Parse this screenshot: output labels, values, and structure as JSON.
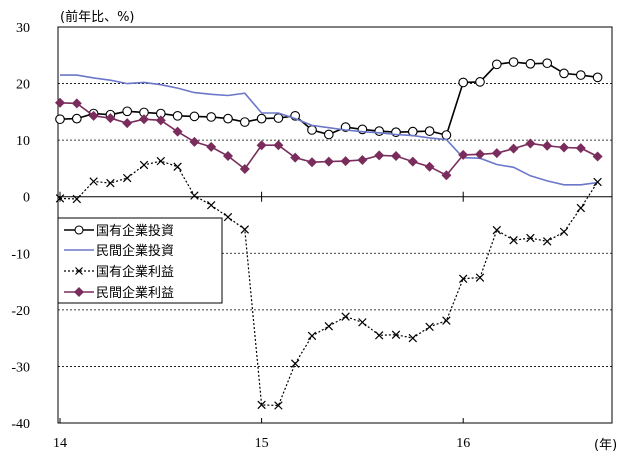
{
  "chart_data": {
    "type": "line",
    "ylabel": "(前年比、%)",
    "xunit": "(年)",
    "ylim": [
      -40,
      30
    ],
    "yticks": [
      30,
      20,
      10,
      0,
      -10,
      -20,
      -30,
      -40
    ],
    "xticks": [
      "14",
      "15",
      "16"
    ],
    "grid": "horizontal dashed",
    "legend_position": "left-middle",
    "series": [
      {
        "name": "国有企業投資",
        "color": "#000000",
        "marker": "circle",
        "values": [
          13.7,
          13.8,
          14.7,
          14.5,
          15.1,
          14.9,
          14.7,
          14.3,
          14.2,
          14.1,
          13.8,
          13.2,
          13.8,
          13.9,
          14.3,
          11.8,
          11.0,
          12.3,
          11.9,
          11.6,
          11.4,
          11.5,
          11.6,
          10.9,
          20.2,
          20.3,
          23.4,
          23.8,
          23.5,
          23.6,
          21.8,
          21.5,
          21.1
        ]
      },
      {
        "name": "民間企業投資",
        "color": "#6b77c9",
        "marker": "none",
        "values": [
          21.5,
          21.5,
          21.0,
          20.6,
          20.0,
          20.2,
          19.8,
          19.2,
          18.4,
          18.1,
          17.9,
          18.3,
          14.8,
          14.8,
          13.8,
          12.6,
          12.2,
          11.8,
          11.5,
          11.3,
          11.0,
          10.8,
          10.4,
          10.1,
          6.9,
          6.8,
          5.7,
          5.2,
          3.7,
          2.8,
          2.1,
          2.1,
          2.5
        ]
      },
      {
        "name": "国有企業利益",
        "color": "#000000",
        "marker": "x",
        "values": [
          -0.3,
          -0.4,
          2.7,
          2.4,
          3.3,
          5.6,
          6.3,
          5.3,
          0.2,
          -1.5,
          -3.6,
          -5.8,
          -36.8,
          -36.9,
          -29.5,
          -24.6,
          -22.9,
          -21.2,
          -22.2,
          -24.5,
          -24.4,
          -25.0,
          -23.0,
          -21.9,
          -14.5,
          -14.3,
          -5.9,
          -7.7,
          -7.3,
          -7.9,
          -6.2,
          -2.0,
          2.6
        ]
      },
      {
        "name": "民間企業利益",
        "color": "#7a2d5c",
        "marker": "diamond",
        "values": [
          16.6,
          16.5,
          14.3,
          13.9,
          13.0,
          13.7,
          13.5,
          11.5,
          9.7,
          8.8,
          7.2,
          4.9,
          9.1,
          9.1,
          6.9,
          6.1,
          6.2,
          6.3,
          6.5,
          7.3,
          7.2,
          6.2,
          5.3,
          3.8,
          7.4,
          7.5,
          7.7,
          8.5,
          9.4,
          9.0,
          8.7,
          8.6,
          7.1
        ]
      }
    ]
  }
}
